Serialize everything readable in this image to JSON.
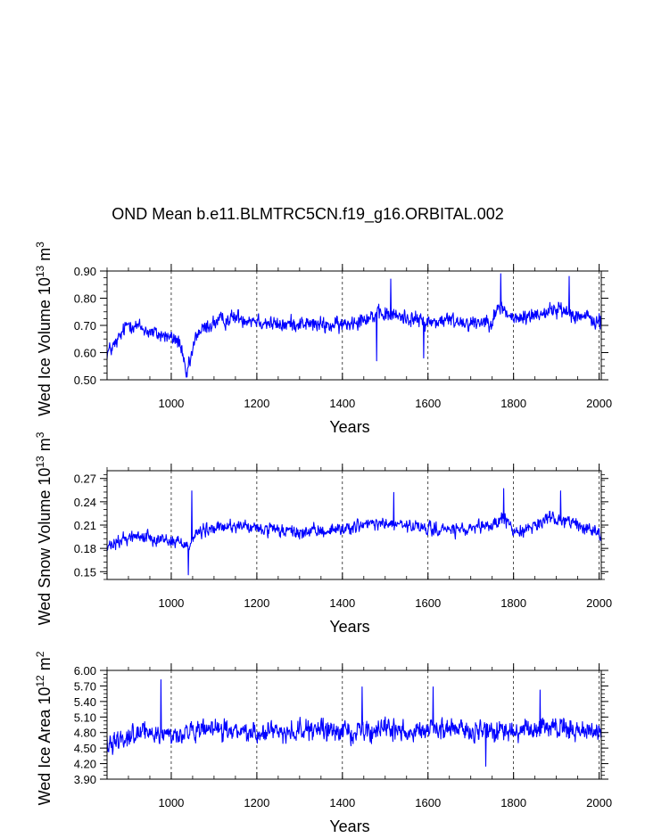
{
  "title": "OND Mean b.e11.BLMTRC5CN.f19_g16.ORBITAL.002",
  "series_color": "#0000ff",
  "chart_data": [
    {
      "type": "line",
      "ylabel_parts": {
        "prefix": "Wed Ice Volume 10",
        "exp": "13",
        "unit": " m",
        "unit_exp": "3"
      },
      "xlabel": "Years",
      "xlim": [
        850,
        2005
      ],
      "ylim": [
        0.5,
        0.9
      ],
      "xticks": [
        "1000",
        "1200",
        "1400",
        "1600",
        "1800",
        "2000"
      ],
      "yticks": [
        "0.50",
        "0.60",
        "0.70",
        "0.80",
        "0.90"
      ],
      "gridlines_x": [
        1000,
        1200,
        1400,
        1600,
        1800,
        2000
      ],
      "anchors": [
        [
          850,
          0.6
        ],
        [
          870,
          0.63
        ],
        [
          900,
          0.71
        ],
        [
          930,
          0.69
        ],
        [
          960,
          0.67
        ],
        [
          990,
          0.66
        ],
        [
          1020,
          0.64
        ],
        [
          1035,
          0.51
        ],
        [
          1060,
          0.67
        ],
        [
          1100,
          0.71
        ],
        [
          1150,
          0.73
        ],
        [
          1200,
          0.72
        ],
        [
          1250,
          0.7
        ],
        [
          1300,
          0.71
        ],
        [
          1350,
          0.7
        ],
        [
          1400,
          0.7
        ],
        [
          1450,
          0.73
        ],
        [
          1500,
          0.74
        ],
        [
          1550,
          0.73
        ],
        [
          1600,
          0.71
        ],
        [
          1650,
          0.72
        ],
        [
          1700,
          0.71
        ],
        [
          1750,
          0.72
        ],
        [
          1770,
          0.77
        ],
        [
          1800,
          0.72
        ],
        [
          1850,
          0.74
        ],
        [
          1900,
          0.76
        ],
        [
          1950,
          0.74
        ],
        [
          2000,
          0.71
        ]
      ],
      "extremes": [
        [
          1035,
          0.51
        ],
        [
          1513,
          0.87
        ],
        [
          1770,
          0.89
        ],
        [
          1930,
          0.88
        ],
        [
          1480,
          0.57
        ],
        [
          1590,
          0.58
        ]
      ],
      "noise": 0.045
    },
    {
      "type": "line",
      "ylabel_parts": {
        "prefix": "Wed Snow Volume 10",
        "exp": "13",
        "unit": " m",
        "unit_exp": "3"
      },
      "xlabel": "Years",
      "xlim": [
        850,
        2005
      ],
      "ylim": [
        0.14,
        0.28
      ],
      "xticks": [
        "1000",
        "1200",
        "1400",
        "1600",
        "1800",
        "2000"
      ],
      "yticks": [
        "0.15",
        "0.18",
        "0.21",
        "0.24",
        "0.27"
      ],
      "gridlines_x": [
        1000,
        1200,
        1400,
        1600,
        1800,
        2000
      ],
      "anchors": [
        [
          850,
          0.18
        ],
        [
          900,
          0.195
        ],
        [
          950,
          0.195
        ],
        [
          1000,
          0.19
        ],
        [
          1040,
          0.185
        ],
        [
          1060,
          0.2
        ],
        [
          1100,
          0.205
        ],
        [
          1150,
          0.21
        ],
        [
          1200,
          0.205
        ],
        [
          1300,
          0.2
        ],
        [
          1400,
          0.205
        ],
        [
          1450,
          0.21
        ],
        [
          1500,
          0.212
        ],
        [
          1600,
          0.205
        ],
        [
          1700,
          0.203
        ],
        [
          1750,
          0.21
        ],
        [
          1780,
          0.22
        ],
        [
          1800,
          0.2
        ],
        [
          1850,
          0.21
        ],
        [
          1900,
          0.22
        ],
        [
          1950,
          0.21
        ],
        [
          2000,
          0.2
        ]
      ],
      "extremes": [
        [
          1040,
          0.146
        ],
        [
          1048,
          0.254
        ],
        [
          1520,
          0.252
        ],
        [
          1777,
          0.257
        ],
        [
          1910,
          0.254
        ]
      ],
      "noise": 0.013
    },
    {
      "type": "line",
      "ylabel_parts": {
        "prefix": "Wed Ice Area 10",
        "exp": "12",
        "unit": " m",
        "unit_exp": "2"
      },
      "xlabel": "Years",
      "xlim": [
        850,
        2005
      ],
      "ylim": [
        3.9,
        6.0
      ],
      "xticks": [
        "1000",
        "1200",
        "1400",
        "1600",
        "1800",
        "2000"
      ],
      "yticks": [
        "3.90",
        "4.20",
        "4.50",
        "4.80",
        "5.10",
        "5.40",
        "5.70",
        "6.00"
      ],
      "gridlines_x": [
        1000,
        1200,
        1400,
        1600,
        1800,
        2000
      ],
      "anchors": [
        [
          850,
          4.6
        ],
        [
          900,
          4.75
        ],
        [
          950,
          4.8
        ],
        [
          1000,
          4.75
        ],
        [
          1100,
          4.85
        ],
        [
          1200,
          4.8
        ],
        [
          1300,
          4.85
        ],
        [
          1400,
          4.82
        ],
        [
          1500,
          4.85
        ],
        [
          1600,
          4.85
        ],
        [
          1700,
          4.85
        ],
        [
          1800,
          4.8
        ],
        [
          1900,
          4.9
        ],
        [
          2000,
          4.8
        ]
      ],
      "extremes": [
        [
          976,
          5.82
        ],
        [
          1446,
          5.68
        ],
        [
          1612,
          5.68
        ],
        [
          1862,
          5.62
        ],
        [
          1735,
          4.15
        ]
      ],
      "noise": 0.3
    }
  ]
}
